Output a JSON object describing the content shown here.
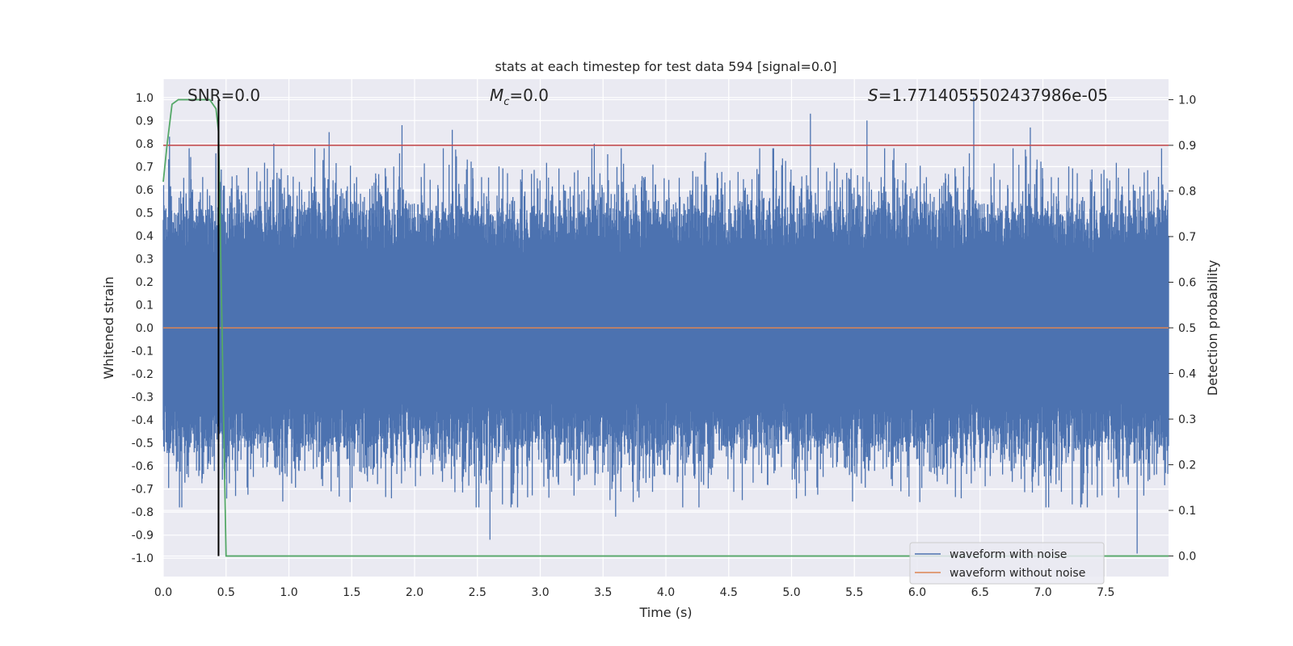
{
  "chart_data": {
    "type": "line",
    "title": "stats at each timestep for test data 594 [signal=0.0]",
    "xlabel": "Time (s)",
    "ylabel": "Whitened strain",
    "ylabel_right": "Detection probability",
    "xlim": [
      0.0,
      8.0
    ],
    "ylim": [
      -1.08,
      1.08
    ],
    "ylim_right": [
      -0.045,
      1.045
    ],
    "x_ticks": [
      "0.0",
      "0.5",
      "1.0",
      "1.5",
      "2.0",
      "2.5",
      "3.0",
      "3.5",
      "4.0",
      "4.5",
      "5.0",
      "5.5",
      "6.0",
      "6.5",
      "7.0",
      "7.5"
    ],
    "y_ticks": [
      "1.0",
      "0.9",
      "0.8",
      "0.7",
      "0.6",
      "0.5",
      "0.4",
      "0.3",
      "0.2",
      "0.1",
      "0.0",
      "-0.1",
      "-0.2",
      "-0.3",
      "-0.4",
      "-0.5",
      "-0.6",
      "-0.7",
      "-0.8",
      "-0.9",
      "-1.0"
    ],
    "y_ticks_right": [
      "1.0",
      "0.9",
      "0.8",
      "0.7",
      "0.6",
      "0.5",
      "0.4",
      "0.3",
      "0.2",
      "0.1",
      "0.0"
    ],
    "annotations": {
      "snr": "SNR=0.0",
      "mc_symbol": "M",
      "mc_sub": "c",
      "mc_value": "=0.0",
      "s_symbol": "S",
      "s_value": "=1.7714055502437986e-05"
    },
    "threshold_right": 0.9,
    "marker_time": 0.44,
    "noise": {
      "name": "waveform with noise",
      "color": "#4c72b0",
      "duration_s": 8.0,
      "typical_amplitude": 0.4,
      "max_abs_amplitude": 1.0,
      "peaks": [
        {
          "t": 0.05,
          "v": 0.83
        },
        {
          "t": 0.88,
          "v": 0.8
        },
        {
          "t": 1.32,
          "v": 0.85
        },
        {
          "t": 1.9,
          "v": 0.88
        },
        {
          "t": 2.3,
          "v": 0.86
        },
        {
          "t": 3.43,
          "v": 0.8
        },
        {
          "t": 5.15,
          "v": 0.93
        },
        {
          "t": 5.6,
          "v": 0.9
        },
        {
          "t": 6.45,
          "v": 1.0
        },
        {
          "t": 6.9,
          "v": 0.87
        },
        {
          "t": 2.6,
          "v": -0.92
        },
        {
          "t": 3.6,
          "v": -0.82
        },
        {
          "t": 7.75,
          "v": -0.98
        }
      ]
    },
    "clean": {
      "name": "waveform without noise",
      "color": "#dd8452",
      "value": 0.0
    },
    "probability": {
      "color": "#55a868",
      "t": [
        0.0,
        0.03,
        0.07,
        0.12,
        0.2,
        0.3,
        0.37,
        0.42,
        0.44,
        0.5,
        1.0,
        8.0
      ],
      "p": [
        0.82,
        0.9,
        0.99,
        1.0,
        1.0,
        1.0,
        1.0,
        0.98,
        0.93,
        0.0,
        0.0,
        0.0
      ]
    },
    "legend": {
      "position": "lower-right",
      "entries": [
        "waveform with noise",
        "waveform without noise"
      ]
    }
  }
}
